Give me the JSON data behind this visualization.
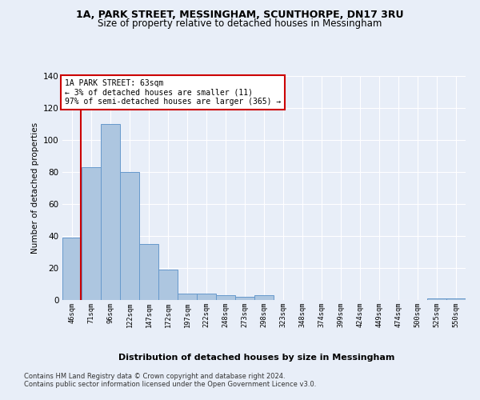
{
  "title_line1": "1A, PARK STREET, MESSINGHAM, SCUNTHORPE, DN17 3RU",
  "title_line2": "Size of property relative to detached houses in Messingham",
  "xlabel": "Distribution of detached houses by size in Messingham",
  "ylabel": "Number of detached properties",
  "categories": [
    "46sqm",
    "71sqm",
    "96sqm",
    "122sqm",
    "147sqm",
    "172sqm",
    "197sqm",
    "222sqm",
    "248sqm",
    "273sqm",
    "298sqm",
    "323sqm",
    "348sqm",
    "374sqm",
    "399sqm",
    "424sqm",
    "449sqm",
    "474sqm",
    "500sqm",
    "525sqm",
    "550sqm"
  ],
  "values": [
    39,
    83,
    110,
    80,
    35,
    19,
    4,
    4,
    3,
    2,
    3,
    0,
    0,
    0,
    0,
    0,
    0,
    0,
    0,
    1,
    1
  ],
  "bar_color": "#adc6e0",
  "bar_edge_color": "#6699cc",
  "highlight_line_color": "#cc0000",
  "annotation_box_text": "1A PARK STREET: 63sqm\n← 3% of detached houses are smaller (11)\n97% of semi-detached houses are larger (365) →",
  "annotation_box_color": "white",
  "annotation_box_edge_color": "#cc0000",
  "ylim": [
    0,
    140
  ],
  "yticks": [
    0,
    20,
    40,
    60,
    80,
    100,
    120,
    140
  ],
  "footer_text": "Contains HM Land Registry data © Crown copyright and database right 2024.\nContains public sector information licensed under the Open Government Licence v3.0.",
  "bg_color": "#e8eef8",
  "plot_bg_color": "#e8eef8"
}
